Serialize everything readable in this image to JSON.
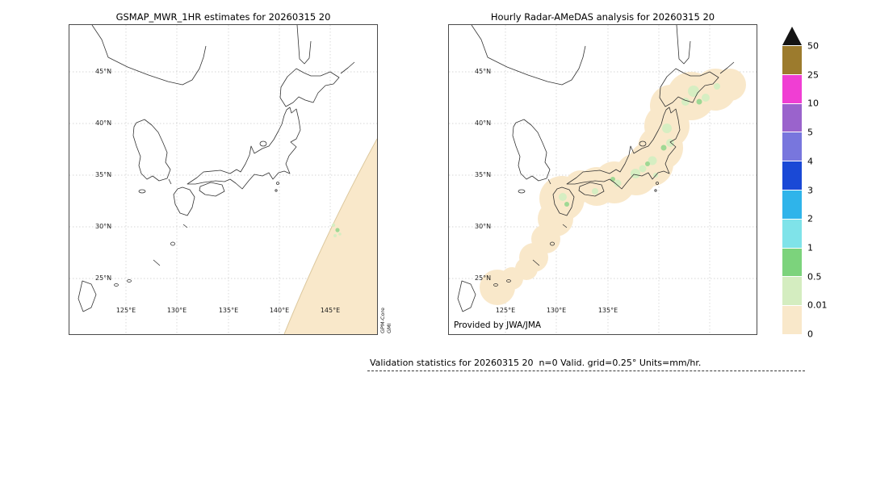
{
  "left_panel": {
    "title": "GSMAP_MWR_1HR estimates for 20260315 20",
    "lat_ticks": [
      "45°N",
      "40°N",
      "35°N",
      "30°N",
      "25°N"
    ],
    "lon_ticks": [
      "125°E",
      "130°E",
      "135°E",
      "140°E",
      "145°E"
    ],
    "side_label": {
      "line1": "GPM-Core",
      "line2": "GMI"
    }
  },
  "right_panel": {
    "title": "Hourly Radar-AMeDAS analysis for 20260315 20",
    "lat_ticks": [
      "45°N",
      "40°N",
      "35°N",
      "30°N",
      "25°N"
    ],
    "lon_ticks": [
      "125°E",
      "130°E",
      "135°E"
    ],
    "credit": "Provided by JWA/JMA"
  },
  "colorbar": {
    "boundary_labels": [
      "50",
      "25",
      "10",
      "5",
      "4",
      "3",
      "2",
      "1",
      "0.5",
      "0.01",
      "0"
    ],
    "segment_colors_top_to_bottom": [
      "#9c7b2d",
      "#f03ed3",
      "#9a63cc",
      "#7876dd",
      "#1a49d6",
      "#2fb4ea",
      "#7fe3e9",
      "#7cd37c",
      "#d4edc0",
      "#f9e8ca"
    ],
    "over_arrow_color": "#141414"
  },
  "footer": {
    "text": "Validation statistics for 20260315 20  n=0 Valid. grid=0.25° Units=mm/hr."
  },
  "map_colors": {
    "rain_trace_beige": "#f9e8ca",
    "rain_light_green": "#d6eec2",
    "rain_green": "#9fd894",
    "coastline": "#333333",
    "gridline": "#c9c9c9"
  },
  "chart_data": {
    "type": "heatmap",
    "title": "GSMaP MWR 1-hr estimates vs Hourly Radar-AMeDAS analysis, 20260315 20",
    "units": "mm/hr",
    "panels": [
      {
        "title": "GSMAP_MWR_1HR estimates for 20260315 20",
        "sensor_label": "GPM-Core GMI",
        "lat_ticks_deg_n": [
          45,
          40,
          35,
          30,
          25
        ],
        "lon_ticks_deg_e": [
          125,
          130,
          135,
          140,
          145
        ],
        "content": "Satellite swath band over the southeastern part of the domain with values 0 mm/hr (beige); a few isolated 0.01-1 mm/hr cells (light green) near 30N 145E"
      },
      {
        "title": "Hourly Radar-AMeDAS analysis for 20260315 20",
        "credit": "Provided by JWA/JMA",
        "lat_ticks_deg_n": [
          45,
          40,
          35,
          30,
          25
        ],
        "lon_ticks_deg_e": [
          125,
          130,
          135
        ],
        "content": "Radar coverage blobs over the Japanese archipelago, mostly 0-0.01 mm/hr (beige) with scattered 0.01-1 mm/hr echoes (greens) over land from Kyushu through Hokkaido"
      }
    ],
    "colorbar": {
      "levels_mm_per_hr": [
        0,
        0.01,
        0.5,
        1,
        2,
        3,
        4,
        5,
        10,
        25,
        50
      ],
      "colors_low_to_high": [
        "#f9e8ca",
        "#d4edc0",
        "#7cd37c",
        "#7fe3e9",
        "#2fb4ea",
        "#1a49d6",
        "#7876dd",
        "#9a63cc",
        "#f03ed3",
        "#9c7b2d"
      ],
      "over_50_arrow": "#141414",
      "legend_position": "right"
    },
    "stats": {
      "n": 0,
      "grid": "0.25°",
      "units": "mm/hr"
    }
  }
}
